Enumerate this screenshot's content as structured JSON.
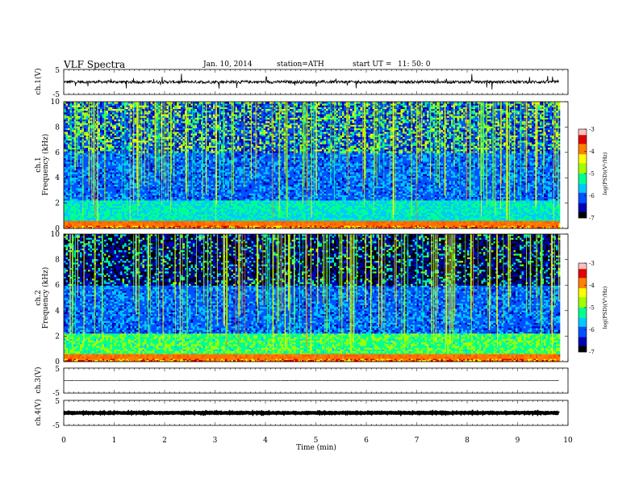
{
  "header": {
    "title": "VLF  Spectra",
    "date": "Jan. 10, 2014",
    "station": "station=ATH",
    "start_label": "start  UT  =",
    "start_time": "11: 50: 0"
  },
  "chart_data": [
    {
      "type": "line",
      "panel": "ch1-waveform",
      "ylabel": "ch.1(V)",
      "yticks": [
        "5",
        "-5"
      ],
      "ylim": [
        -5,
        5
      ],
      "baseline_value": 0
    },
    {
      "type": "heatmap",
      "panel": "ch1-spectrogram",
      "ylabel": "Frequency  (kHz)",
      "channel_label": "ch.1",
      "ylim": [
        0,
        10
      ],
      "yticks": [
        "0",
        "2",
        "4",
        "6",
        "8",
        "10"
      ],
      "colorbar": {
        "label": "log(PSD)(V²/Hz)",
        "ticks": [
          "-3",
          "-4",
          "-5",
          "-6",
          "-7"
        ],
        "range": [
          -7,
          -3
        ]
      }
    },
    {
      "type": "heatmap",
      "panel": "ch2-spectrogram",
      "ylabel": "Frequency  (kHz)",
      "channel_label": "ch.2",
      "ylim": [
        0,
        10
      ],
      "yticks": [
        "0",
        "2",
        "4",
        "6",
        "8",
        "10"
      ],
      "colorbar": {
        "label": "log(PSD)(V²/Hz)",
        "ticks": [
          "-3",
          "-4",
          "-5",
          "-6",
          "-7"
        ],
        "range": [
          -7,
          -3
        ]
      }
    },
    {
      "type": "line",
      "panel": "ch3-waveform",
      "ylabel": "ch.3(V)",
      "yticks": [
        "5",
        "-5"
      ],
      "ylim": [
        -5,
        5
      ]
    },
    {
      "type": "line",
      "panel": "ch4-waveform",
      "ylabel": "ch.4(V)",
      "yticks": [
        "5",
        "-5"
      ],
      "ylim": [
        -5,
        5
      ]
    }
  ],
  "xaxis": {
    "label": "Time  (min)",
    "ticks": [
      "0",
      "1",
      "2",
      "3",
      "4",
      "5",
      "6",
      "7",
      "8",
      "9",
      "10"
    ],
    "xlim": [
      0,
      10
    ],
    "data_end": 9.82
  },
  "colors": {
    "colormap": [
      "#000000",
      "#0000b4",
      "#0050ff",
      "#00c8ff",
      "#00ff90",
      "#a0ff00",
      "#ffff00",
      "#ff8000",
      "#e00000",
      "#ffc0c0"
    ],
    "trace": "#000000"
  }
}
